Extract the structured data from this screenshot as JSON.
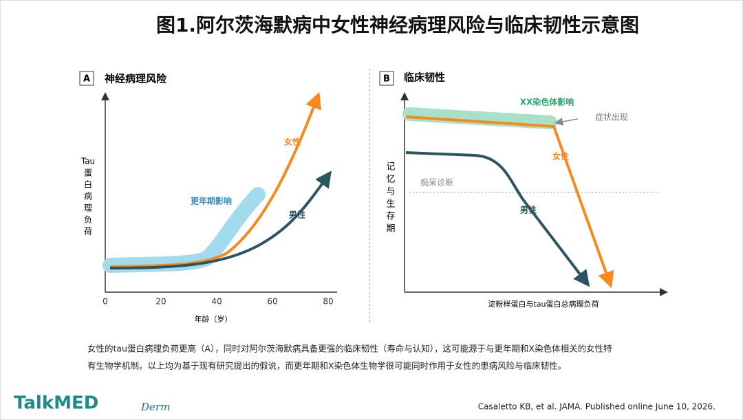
{
  "title": "图1.阿尔茨海默病中女性神经病理风险与临床韧性示意图",
  "panel_a": {
    "letter": "A",
    "title": "神经病理风险",
    "y_label_lines": [
      "Tau",
      "蛋",
      "白",
      "病",
      "理",
      "负",
      "荷"
    ],
    "x_label": "年龄（岁）",
    "x_ticks": [
      0,
      20,
      40,
      60,
      80
    ],
    "labels": {
      "female": "女性",
      "menopause": "更年期影响",
      "male": "男性"
    }
  },
  "panel_b": {
    "letter": "B",
    "title": "临床韧性",
    "y_label_lines": [
      "记",
      "忆",
      "与",
      "生",
      "存",
      "期"
    ],
    "x_label": "淀粉样蛋白与tau蛋白总病理负荷",
    "labels": {
      "xx": "XX染色体影响",
      "onset": "症状出现",
      "female": "女性",
      "diagnosis": "痴呆诊断",
      "male": "男性"
    }
  },
  "caption": [
    "女性的tau蛋白病理负荷更高（A），同时对阿尔茨海默病具备更强的临床韧性（寿命与认知），这可能源于与更年期和X染色体相关的女性特",
    "有生物学机制。以上均为基于现有研究提出的假说，而更年期和X染色体生物学很可能同时作用于女性的患病风险与临床韧性。"
  ],
  "footer": {
    "logo": "TalkMED",
    "sub": "Derm",
    "citation": "Casaletto KB, et al. JAMA. Published online June 10, 2026."
  }
}
